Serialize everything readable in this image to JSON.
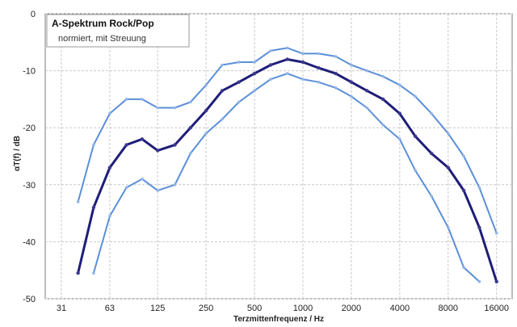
{
  "chart_data": {
    "type": "line",
    "title": "A-Spektrum Rock/Pop",
    "subtitle": "normiert, mit Streuung",
    "xlabel": "Terzmittenfrequenz / Hz",
    "ylabel": "",
    "ylabel_parts": [
      "αT",
      "(f) / dB"
    ],
    "x_scale": "log",
    "xlim": [
      25,
      20000
    ],
    "ylim": [
      -50,
      0
    ],
    "y_ticks": [
      0,
      -10,
      -20,
      -30,
      -40,
      -50
    ],
    "x_tick_labels": [
      "31",
      "63",
      "125",
      "250",
      "500",
      "1000",
      "2000",
      "4000",
      "8000",
      "16000"
    ],
    "x_tick_values": [
      31.5,
      63,
      125,
      250,
      500,
      1000,
      2000,
      4000,
      8000,
      16000
    ],
    "grid": true,
    "legend": "none",
    "x": [
      40,
      50,
      63,
      80,
      100,
      125,
      160,
      200,
      250,
      315,
      400,
      500,
      630,
      800,
      1000,
      1250,
      1600,
      2000,
      2500,
      3150,
      4000,
      5000,
      6300,
      8000,
      10000,
      12500,
      16000
    ],
    "series": [
      {
        "role": "upper",
        "color": "#5b8fd8",
        "values": [
          -33,
          -23,
          -17.5,
          -15,
          -15,
          -16.5,
          -16.5,
          -15.5,
          -12.5,
          -9,
          -8.5,
          -8.5,
          -6.5,
          -6,
          -7,
          -7,
          -7.5,
          -9,
          -10,
          -11,
          -12.5,
          -14.5,
          -17.5,
          -21,
          -25,
          -30.5,
          -38.5
        ]
      },
      {
        "role": "mean",
        "color": "#1f1d78",
        "values": [
          -45.5,
          -34,
          -27,
          -23,
          -22,
          -24,
          -23,
          -20,
          -17,
          -13.5,
          -12,
          -10.5,
          -9,
          -8,
          -8.5,
          -9.5,
          -10.5,
          -12,
          -13.5,
          -15,
          -17.5,
          -21.5,
          -24.5,
          -27,
          -31,
          -37.5,
          -47
        ]
      },
      {
        "role": "lower",
        "color": "#5b8fd8",
        "values": [
          null,
          -45.5,
          -35.5,
          -30.5,
          -29,
          -31,
          -30,
          -24.5,
          -21,
          -18.5,
          -15.5,
          -13.5,
          -11.5,
          -10.5,
          -11.5,
          -12,
          -13,
          -14.5,
          -16.5,
          -19.5,
          -22,
          -27.5,
          -32,
          -37.5,
          -44.5,
          -47,
          null
        ]
      }
    ]
  }
}
